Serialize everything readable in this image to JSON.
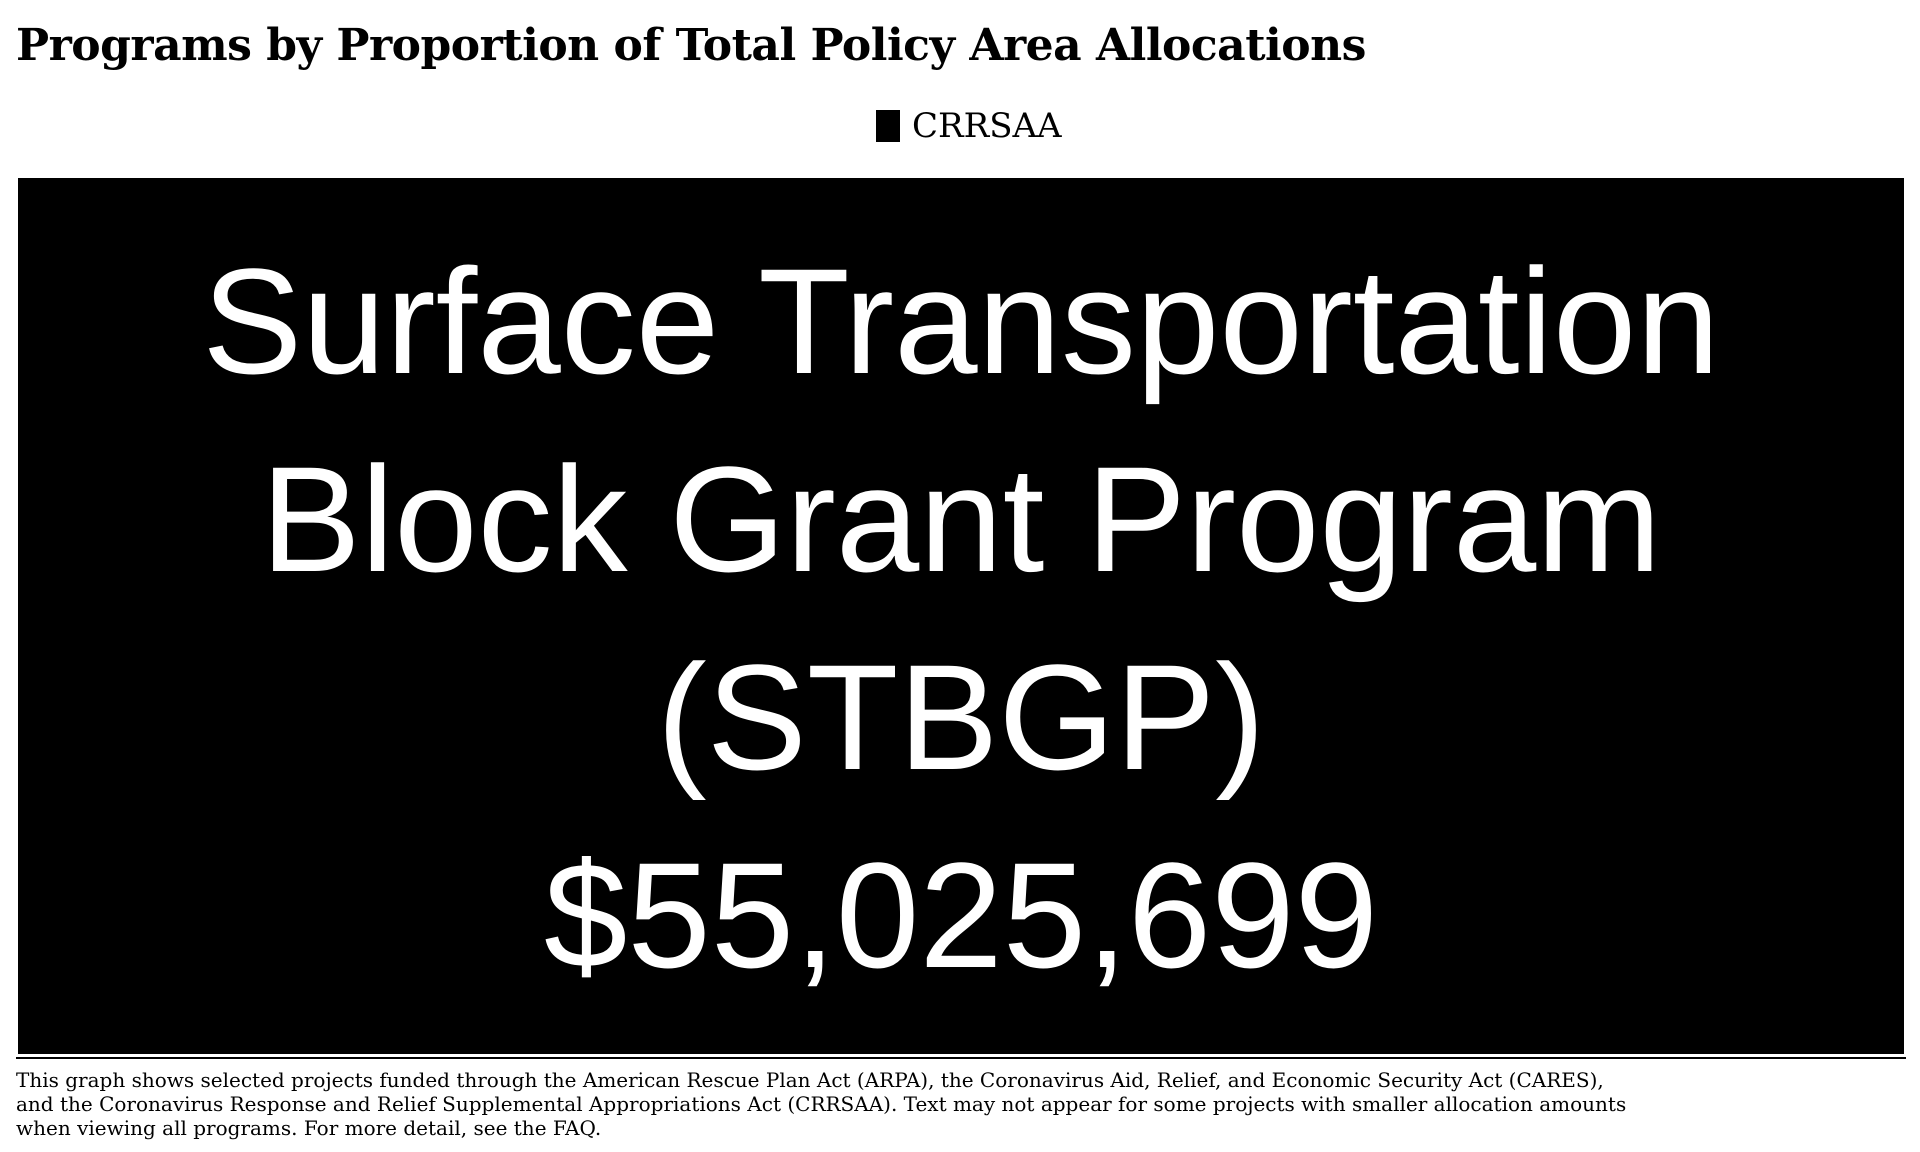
{
  "title": "Programs by Proportion of Total Policy Area Allocations",
  "legend": {
    "label": "CRRSAA",
    "color": "#000000"
  },
  "chart_data": {
    "type": "treemap",
    "series": [
      {
        "name": "CRRSAA",
        "color": "#000000",
        "items": [
          {
            "label_lines": [
              "Surface Transportation",
              "Block Grant Program",
              "(STBGP)"
            ],
            "value": 55025699,
            "value_label": "$55,025,699"
          }
        ]
      }
    ]
  },
  "footnote": {
    "lines": [
      "This graph shows selected projects funded through the American Rescue Plan Act (ARPA), the Coronavirus Aid, Relief, and Economic Security Act (CARES),",
      "and the Coronavirus Response and Relief Supplemental Appropriations Act (CRRSAA). Text may not appear for some projects with smaller allocation amounts",
      " when viewing all programs. For more detail, see the FAQ."
    ]
  }
}
